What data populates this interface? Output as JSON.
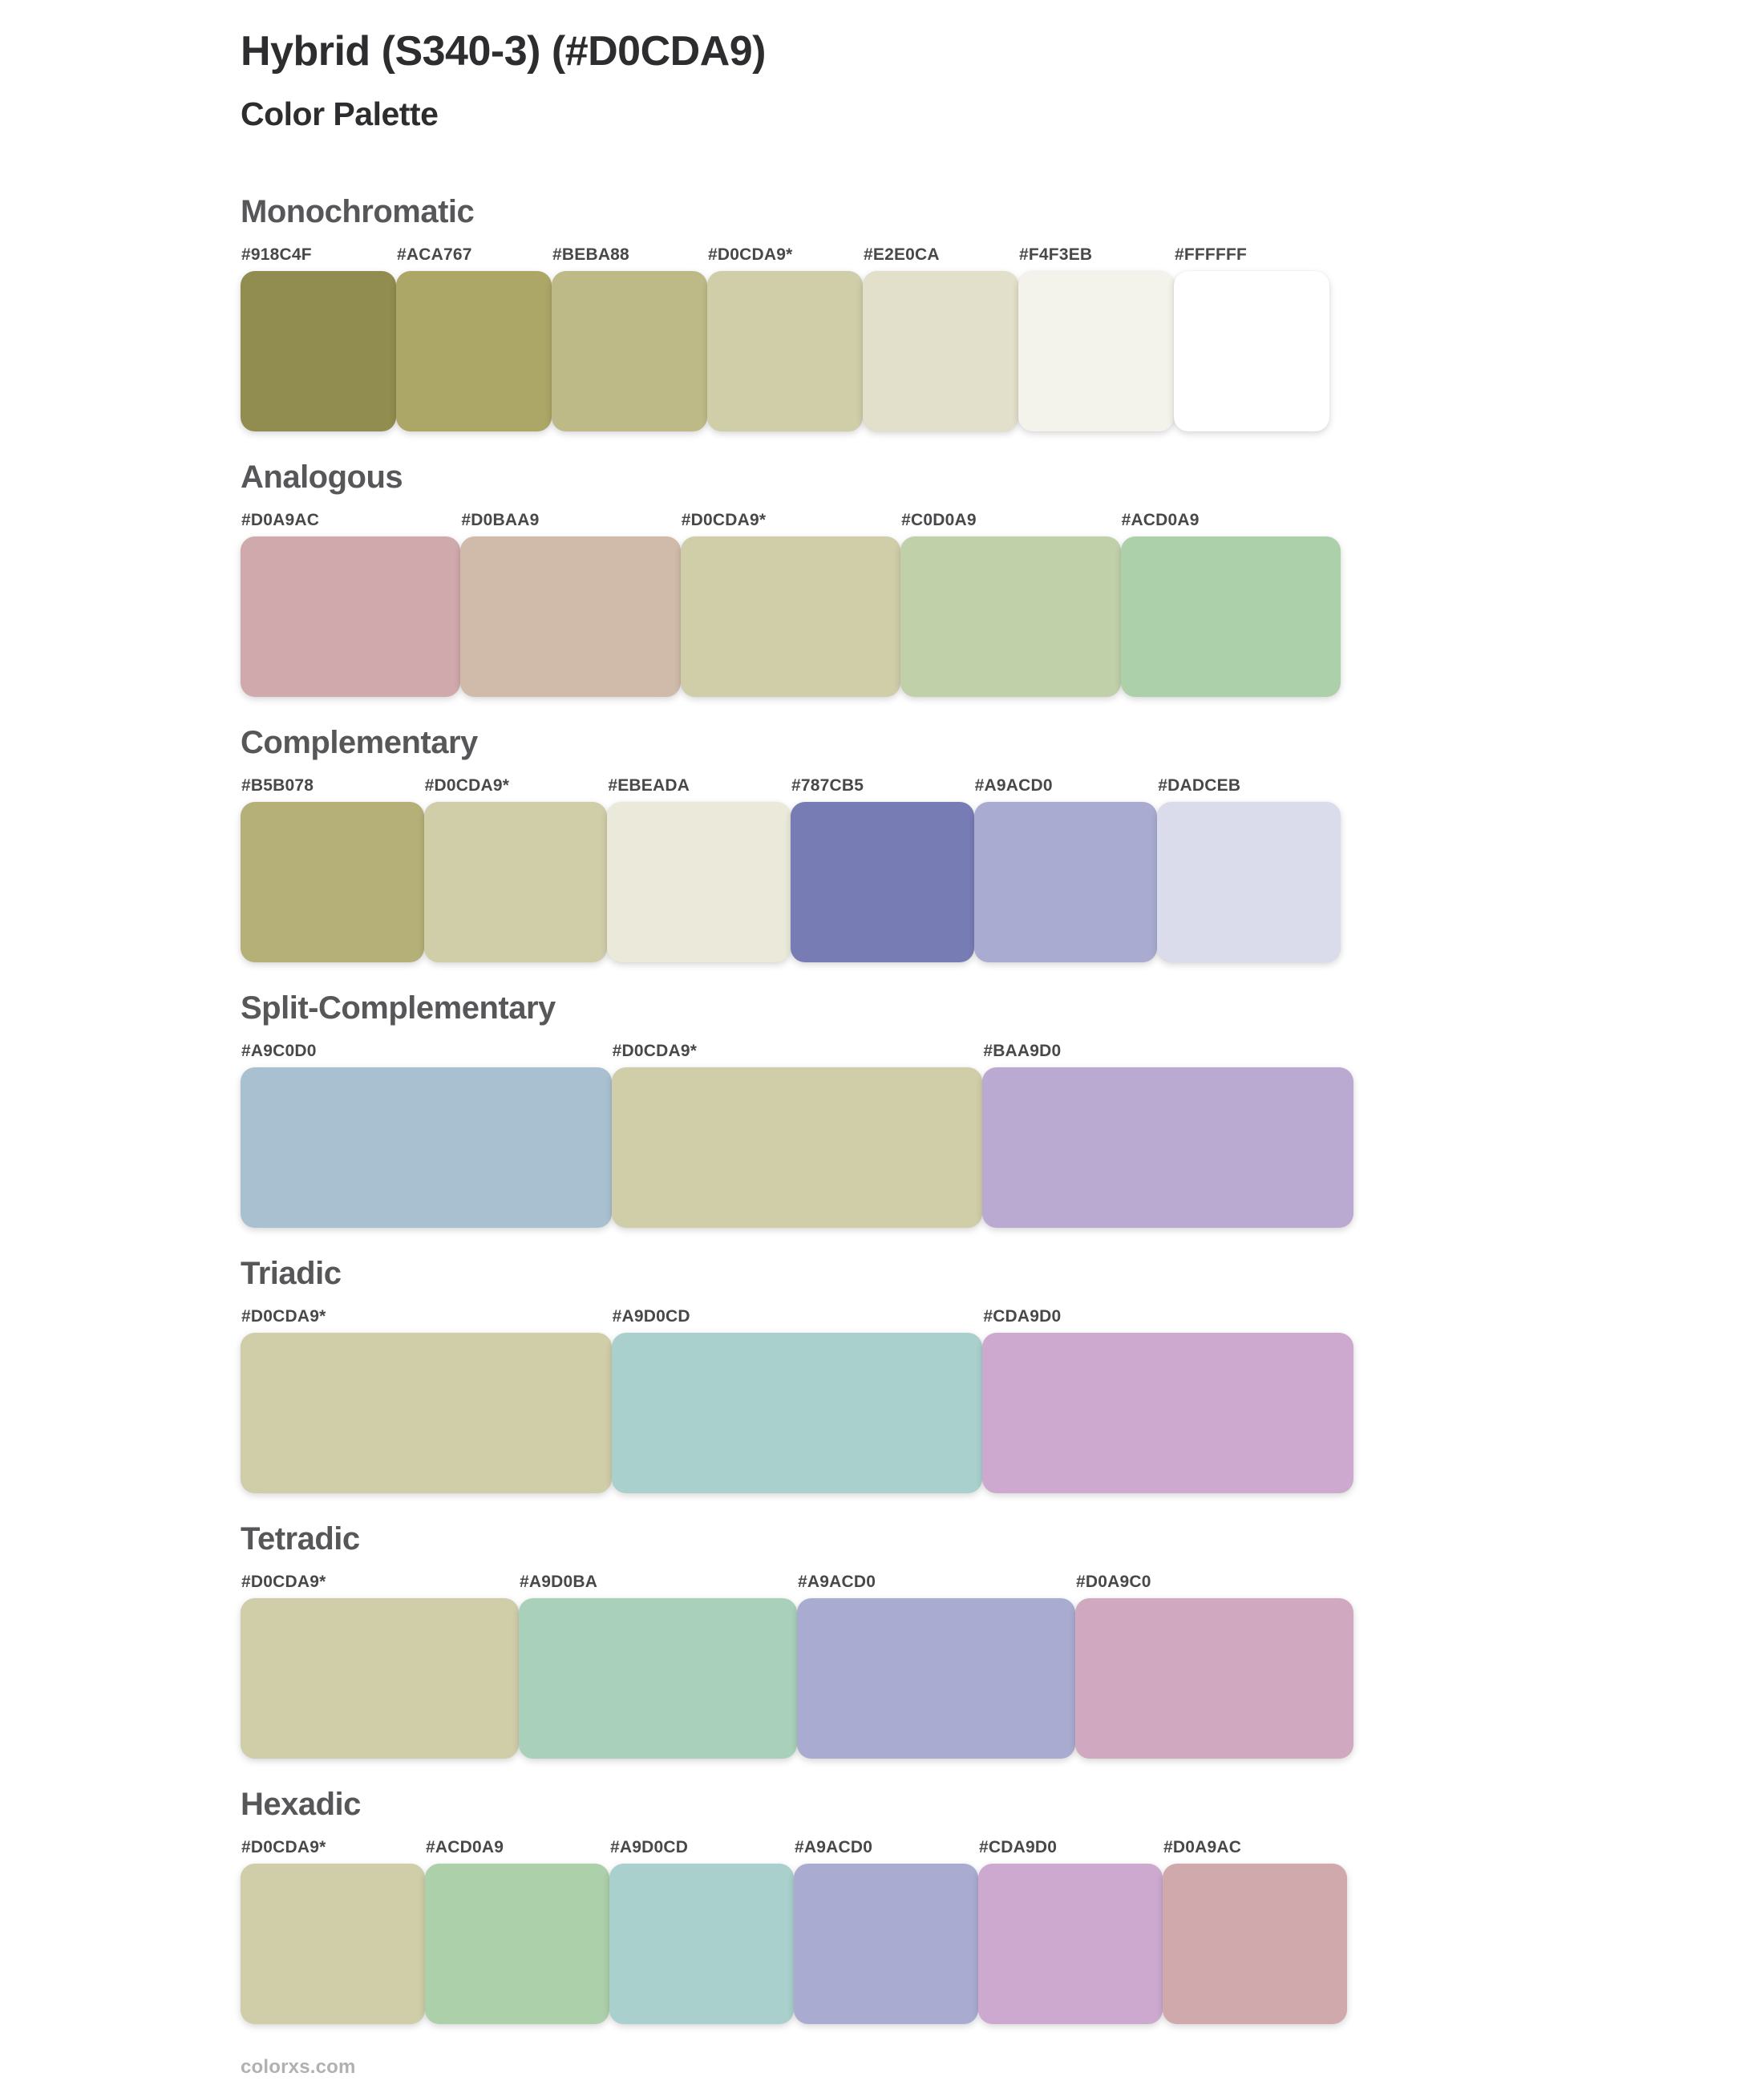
{
  "header": {
    "title": "Hybrid (S340-3) (#D0CDA9)",
    "subtitle": "Color Palette",
    "base_color": "#D0CDA9"
  },
  "sections": [
    {
      "id": "monochromatic",
      "name": "Monochromatic",
      "colors": [
        {
          "label": "#918C4F",
          "hex": "#918C4F"
        },
        {
          "label": "#ACA767",
          "hex": "#ACA767"
        },
        {
          "label": "#BEBA88",
          "hex": "#BEBA88"
        },
        {
          "label": "#D0CDA9*",
          "hex": "#D0CDA9"
        },
        {
          "label": "#E2E0CA",
          "hex": "#E2E0CA"
        },
        {
          "label": "#F4F3EB",
          "hex": "#F4F3EB"
        },
        {
          "label": "#FFFFFF",
          "hex": "#FFFFFF"
        }
      ]
    },
    {
      "id": "analogous",
      "name": "Analogous",
      "colors": [
        {
          "label": "#D0A9AC",
          "hex": "#D0A9AC"
        },
        {
          "label": "#D0BAA9",
          "hex": "#D0BAA9"
        },
        {
          "label": "#D0CDA9*",
          "hex": "#D0CDA9"
        },
        {
          "label": "#C0D0A9",
          "hex": "#C0D0A9"
        },
        {
          "label": "#ACD0A9",
          "hex": "#ACD0A9"
        }
      ]
    },
    {
      "id": "complementary",
      "name": "Complementary",
      "colors": [
        {
          "label": "#B5B078",
          "hex": "#B5B078"
        },
        {
          "label": "#D0CDA9*",
          "hex": "#D0CDA9"
        },
        {
          "label": "#EBEADA",
          "hex": "#EBEADA"
        },
        {
          "label": "#787CB5",
          "hex": "#787CB5"
        },
        {
          "label": "#A9ACD0",
          "hex": "#A9ACD0"
        },
        {
          "label": "#DADCEB",
          "hex": "#DADCEB"
        }
      ]
    },
    {
      "id": "split-complementary",
      "name": "Split-Complementary",
      "colors": [
        {
          "label": "#A9C0D0",
          "hex": "#A9C0D0"
        },
        {
          "label": "#D0CDA9*",
          "hex": "#D0CDA9"
        },
        {
          "label": "#BAA9D0",
          "hex": "#BAA9D0"
        }
      ]
    },
    {
      "id": "triadic",
      "name": "Triadic",
      "colors": [
        {
          "label": "#D0CDA9*",
          "hex": "#D0CDA9"
        },
        {
          "label": "#A9D0CD",
          "hex": "#A9D0CD"
        },
        {
          "label": "#CDA9D0",
          "hex": "#CDA9D0"
        }
      ]
    },
    {
      "id": "tetradic",
      "name": "Tetradic",
      "colors": [
        {
          "label": "#D0CDA9*",
          "hex": "#D0CDA9"
        },
        {
          "label": "#A9D0BA",
          "hex": "#A9D0BA"
        },
        {
          "label": "#A9ACD0",
          "hex": "#A9ACD0"
        },
        {
          "label": "#D0A9C0",
          "hex": "#D0A9C0"
        }
      ]
    },
    {
      "id": "hexadic",
      "name": "Hexadic",
      "colors": [
        {
          "label": "#D0CDA9*",
          "hex": "#D0CDA9"
        },
        {
          "label": "#ACD0A9",
          "hex": "#ACD0A9"
        },
        {
          "label": "#A9D0CD",
          "hex": "#A9D0CD"
        },
        {
          "label": "#A9ACD0",
          "hex": "#A9ACD0"
        },
        {
          "label": "#CDA9D0",
          "hex": "#CDA9D0"
        },
        {
          "label": "#D0A9AC",
          "hex": "#D0A9AC"
        }
      ]
    }
  ],
  "footer": {
    "site": "colorxs.com"
  }
}
